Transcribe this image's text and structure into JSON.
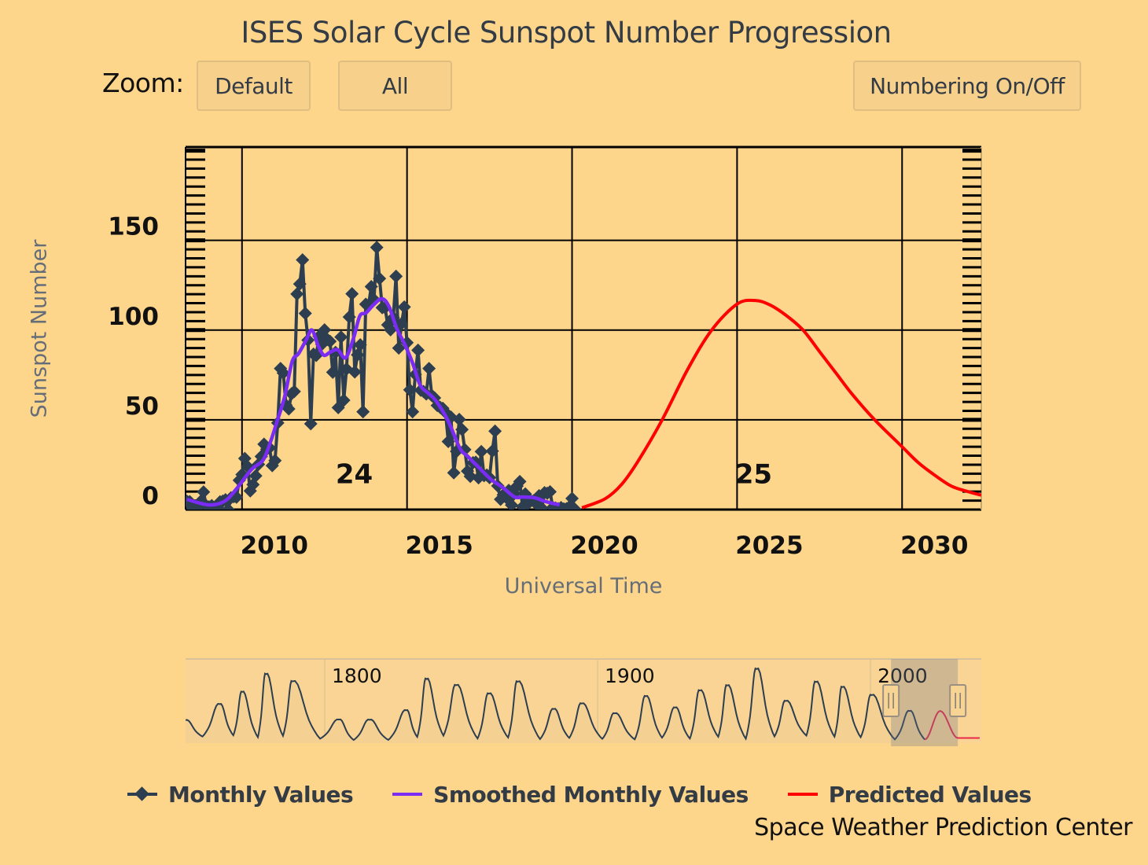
{
  "title": "ISES Solar Cycle Sunspot Number Progression",
  "toolbar": {
    "zoom_label": "Zoom:",
    "default_label": "Default",
    "all_label": "All",
    "numbering_label": "Numbering On/Off"
  },
  "credit": "Space Weather Prediction Center",
  "colors": {
    "background": "#fdd58b",
    "monthly": "#2c3e50",
    "smoothed": "#7a2cf5",
    "predicted": "#ff0000",
    "grid": "#000000"
  },
  "chart_data": {
    "type": "line",
    "title": "ISES Solar Cycle Sunspot Number Progression",
    "xlabel": "Universal Time",
    "ylabel": "Sunspot Number",
    "xlim": [
      2008.29,
      2032.4
    ],
    "ylim": [
      0,
      202
    ],
    "x_ticks": [
      2010,
      2015,
      2020,
      2025,
      2030
    ],
    "x_tick_labels": [
      "2010",
      "2015",
      "2020",
      "2025",
      "2030"
    ],
    "y_ticks": [
      0,
      50,
      100,
      150
    ],
    "y_tick_labels": [
      "0",
      "50",
      "100",
      "150"
    ],
    "grid": true,
    "legend": {
      "position": "bottom",
      "entries": [
        "Monthly Values",
        "Smoothed Monthly Values",
        "Predicted Values"
      ]
    },
    "cycle_labels": [
      {
        "text": "24",
        "x": 2013.4,
        "y": 20
      },
      {
        "text": "25",
        "x": 2025.5,
        "y": 20
      }
    ],
    "series": [
      {
        "name": "Monthly Values",
        "marker": "diamond",
        "start": 2008.25,
        "step_months": 1,
        "values": [
          4.5,
          4.6,
          4.4,
          0.7,
          0.0,
          1.3,
          4.6,
          9.8,
          2.2,
          1.5,
          2.2,
          0.6,
          1.3,
          4.3,
          4.7,
          5.5,
          0.0,
          6.6,
          7.2,
          6.9,
          16.3,
          19.5,
          28.5,
          24.0,
          10.4,
          13.9,
          18.8,
          25.2,
          29.6,
          36.4,
          33.6,
          34.4,
          24.5,
          27.3,
          48.3,
          78.6,
          76.1,
          58.2,
          56.1,
          64.5,
          65.8,
          120.1,
          125.7,
          139.1,
          109.3,
          94.4,
          47.8,
          86.6,
          85.9,
          96.5,
          92.0,
          100.1,
          94.8,
          93.7,
          76.5,
          87.6,
          56.8,
          96.1,
          60.9,
          78.3,
          107.3,
          120.2,
          76.7,
          86.2,
          91.8,
          54.5,
          114.4,
          113.9,
          124.2,
          117.0,
          146.1,
          128.7,
          112.5,
          112.5,
          102.9,
          100.2,
          106.9,
          130.0,
          90.0,
          103.6,
          112.9,
          93.0,
          66.7,
          54.5,
          75.3,
          88.8,
          66.5,
          65.8,
          64.4,
          78.6,
          63.6,
          62.2,
          58.0,
          57.0,
          56.4,
          54.1,
          37.9,
          51.5,
          20.5,
          32.4,
          50.2,
          44.6,
          33.4,
          21.4,
          18.5,
          26.1,
          26.4,
          17.7,
          32.3,
          18.9,
          19.2,
          17.8,
          32.6,
          43.7,
          13.2,
          5.7,
          8.2,
          6.8,
          10.7,
          2.5,
          8.9,
          13.1,
          15.6,
          1.6,
          8.7,
          3.3,
          4.9,
          4.9,
          3.1,
          7.7,
          0.8,
          9.4,
          9.1,
          9.9,
          1.2,
          0.9,
          0.5,
          1.1,
          0.4,
          0.5,
          1.5,
          6.2,
          0.2
        ]
      },
      {
        "name": "Smoothed Monthly Values",
        "points": [
          [
            2008.33,
            5.7
          ],
          [
            2008.98,
            2.6
          ],
          [
            2009.45,
            4.4
          ],
          [
            2009.81,
            11.0
          ],
          [
            2010.29,
            22.4
          ],
          [
            2010.64,
            27.6
          ],
          [
            2010.88,
            38.6
          ],
          [
            2011.07,
            49.6
          ],
          [
            2011.29,
            62.7
          ],
          [
            2011.52,
            82.5
          ],
          [
            2011.71,
            86.8
          ],
          [
            2011.95,
            94.7
          ],
          [
            2012.12,
            100.0
          ],
          [
            2012.31,
            91.2
          ],
          [
            2012.48,
            86.0
          ],
          [
            2012.67,
            87.7
          ],
          [
            2012.9,
            89.0
          ],
          [
            2013.14,
            84.6
          ],
          [
            2013.38,
            95.6
          ],
          [
            2013.57,
            107.9
          ],
          [
            2013.76,
            109.6
          ],
          [
            2013.98,
            114.0
          ],
          [
            2014.24,
            117.5
          ],
          [
            2014.45,
            113.2
          ],
          [
            2014.69,
            100.9
          ],
          [
            2014.93,
            92.1
          ],
          [
            2015.17,
            81.6
          ],
          [
            2015.4,
            69.3
          ],
          [
            2015.64,
            64.9
          ],
          [
            2015.88,
            60.5
          ],
          [
            2016.24,
            49.6
          ],
          [
            2016.6,
            34.2
          ],
          [
            2016.83,
            29.8
          ],
          [
            2017.19,
            23.2
          ],
          [
            2017.55,
            16.7
          ],
          [
            2017.9,
            12.3
          ],
          [
            2018.26,
            7.0
          ],
          [
            2018.5,
            7.0
          ],
          [
            2018.86,
            6.6
          ],
          [
            2019.21,
            4.4
          ],
          [
            2019.62,
            2.6
          ]
        ]
      },
      {
        "name": "Predicted Values",
        "points": [
          [
            2020.3,
            1.0
          ],
          [
            2021.0,
            6.0
          ],
          [
            2021.5,
            14.0
          ],
          [
            2022.0,
            27.0
          ],
          [
            2022.73,
            50.0
          ],
          [
            2023.5,
            78.0
          ],
          [
            2024.23,
            100.0
          ],
          [
            2025.0,
            114.5
          ],
          [
            2025.55,
            116.5
          ],
          [
            2026.0,
            114.0
          ],
          [
            2026.5,
            108.0
          ],
          [
            2027.0,
            100.0
          ],
          [
            2027.5,
            88.0
          ],
          [
            2028.0,
            76.0
          ],
          [
            2028.5,
            64.0
          ],
          [
            2029.17,
            50.0
          ],
          [
            2030.0,
            35.0
          ],
          [
            2030.5,
            26.0
          ],
          [
            2031.0,
            19.0
          ],
          [
            2031.5,
            13.0
          ],
          [
            2032.0,
            10.0
          ],
          [
            2032.4,
            8.0
          ]
        ]
      }
    ],
    "navigator": {
      "xlim": [
        1749,
        2040.6
      ],
      "x_tick_labels": [
        "1800",
        "1900",
        "2000"
      ],
      "x_ticks": [
        1800,
        1900,
        2000
      ],
      "selection": [
        2007.5,
        2032.0
      ],
      "ylim": [
        0,
        300
      ],
      "history_extrema": [
        [
          1749.0,
          80.0
        ],
        [
          1755.2,
          14.0
        ],
        [
          1761.5,
          144.1
        ],
        [
          1766.5,
          18.6
        ],
        [
          1769.7,
          193.0
        ],
        [
          1775.5,
          11.2
        ],
        [
          1778.4,
          264.3
        ],
        [
          1784.7,
          16.6
        ],
        [
          1788.1,
          235.3
        ],
        [
          1798.3,
          5.3
        ],
        [
          1805.2,
          82.0
        ],
        [
          1810.6,
          0.0
        ],
        [
          1816.4,
          81.2
        ],
        [
          1823.3,
          0.2
        ],
        [
          1829.9,
          119.2
        ],
        [
          1833.9,
          12.2
        ],
        [
          1837.2,
          244.9
        ],
        [
          1843.5,
          17.6
        ],
        [
          1848.1,
          219.9
        ],
        [
          1856.0,
          6.0
        ],
        [
          1860.1,
          186.2
        ],
        [
          1867.2,
          9.9
        ],
        [
          1870.6,
          234.0
        ],
        [
          1878.9,
          3.7
        ],
        [
          1883.9,
          124.4
        ],
        [
          1889.6,
          8.3
        ],
        [
          1894.1,
          146.5
        ],
        [
          1901.7,
          4.5
        ],
        [
          1906.2,
          107.1
        ],
        [
          1913.6,
          2.5
        ],
        [
          1917.6,
          175.7
        ],
        [
          1923.6,
          9.4
        ],
        [
          1928.4,
          130.2
        ],
        [
          1933.8,
          5.8
        ],
        [
          1937.4,
          198.6
        ],
        [
          1944.2,
          12.9
        ],
        [
          1947.4,
          218.7
        ],
        [
          1954.3,
          5.1
        ],
        [
          1958.2,
          285.0
        ],
        [
          1964.8,
          14.3
        ],
        [
          1968.9,
          156.6
        ],
        [
          1976.5,
          17.8
        ],
        [
          1979.9,
          232.9
        ],
        [
          1986.8,
          13.5
        ],
        [
          1989.6,
          212.5
        ],
        [
          1996.4,
          11.2
        ],
        [
          2000.3,
          180.3
        ],
        [
          2008.9,
          2.2
        ],
        [
          2014.3,
          116.4
        ],
        [
          2019.9,
          1.8
        ]
      ],
      "predicted_extrema": [
        [
          2019.9,
          1.8
        ],
        [
          2025.5,
          116.5
        ],
        [
          2032.0,
          8.0
        ],
        [
          2040.0,
          8.0
        ]
      ]
    }
  }
}
